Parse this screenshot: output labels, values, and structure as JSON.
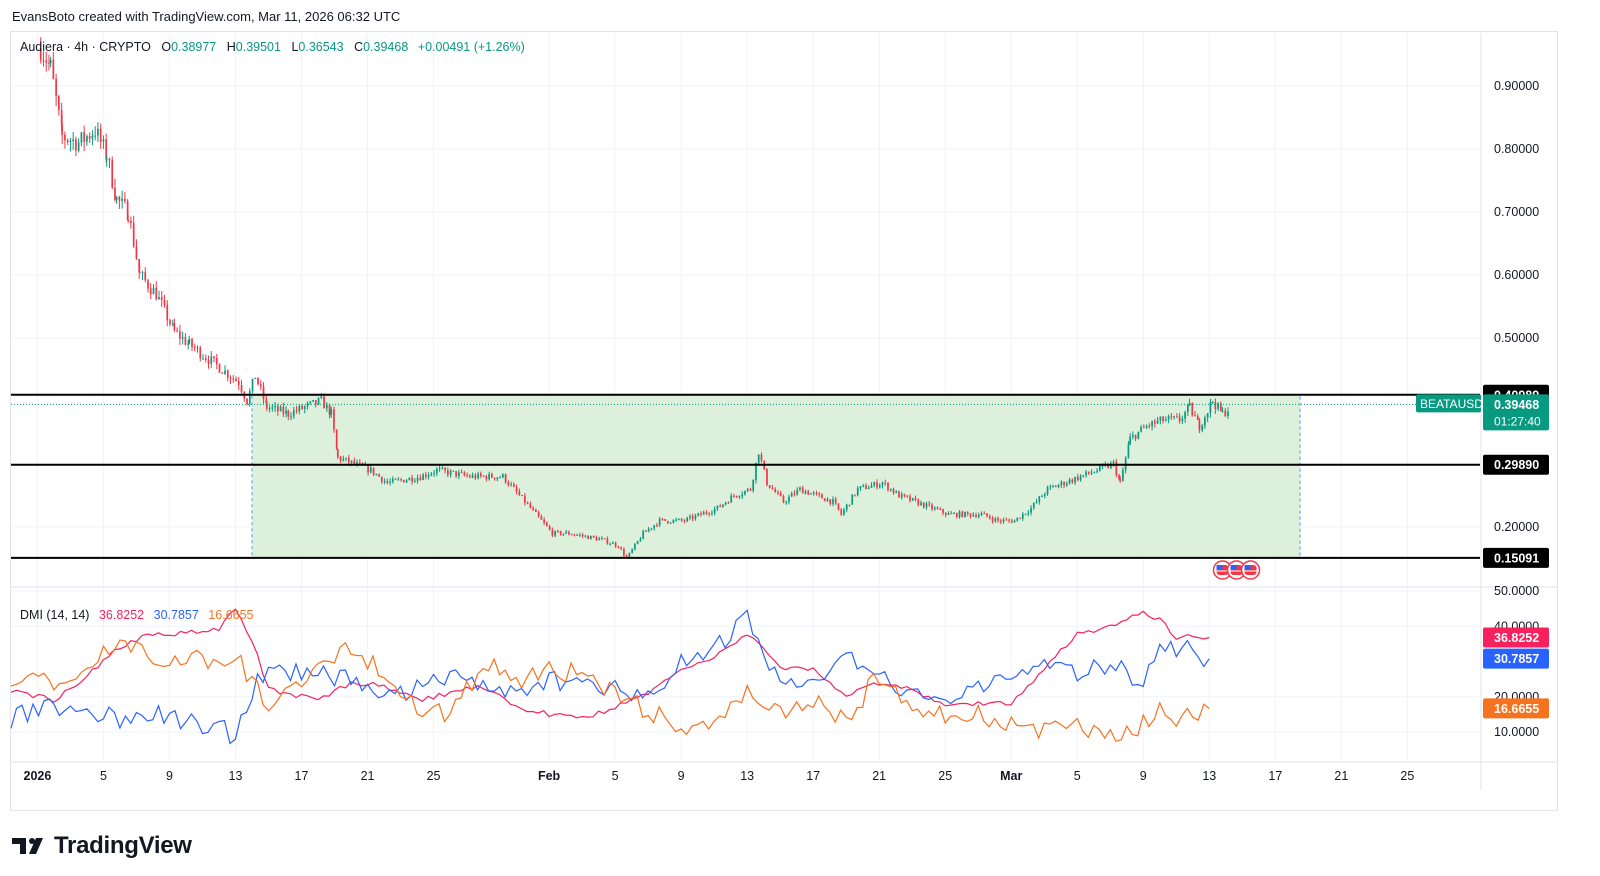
{
  "header": {
    "attribution": "EvansBoto created with TradingView.com, Mar 11, 2026 06:32 UTC"
  },
  "legend": {
    "symbol": "Audiera · 4h · CRYPTO",
    "o_label": "O",
    "o": "0.38977",
    "h_label": "H",
    "h": "0.39501",
    "l_label": "L",
    "l": "0.36543",
    "c_label": "C",
    "c": "0.39468",
    "change": "+0.00491 (+1.26%)"
  },
  "colors": {
    "up": "#089981",
    "down": "#f23645",
    "box_fill": "#dcf0dc",
    "box_border": "#5b8ef0",
    "plus_di": "#2962ff",
    "minus_di": "#f7215e",
    "adx": "#f7721e",
    "level_line": "#000000"
  },
  "price_axis": {
    "ticks": [
      "0.90000",
      "0.80000",
      "0.70000",
      "0.60000",
      "0.50000",
      "0.20000"
    ],
    "tick_values": [
      0.9,
      0.8,
      0.7,
      0.6,
      0.5,
      0.2
    ]
  },
  "levels": [
    {
      "label": "0.40989",
      "value": 0.40989
    },
    {
      "label": "0.29890",
      "value": 0.2989
    },
    {
      "label": "0.15091",
      "value": 0.15091
    }
  ],
  "current_price": {
    "symbol": "BEATAUSD",
    "value": "0.39468",
    "countdown": "01:27:40"
  },
  "x_axis": {
    "labels": [
      "2026",
      "5",
      "9",
      "13",
      "17",
      "21",
      "25",
      "Feb",
      "5",
      "9",
      "13",
      "17",
      "21",
      "25",
      "Mar",
      "5",
      "9",
      "13",
      "17",
      "21",
      "25"
    ],
    "days": [
      1,
      5,
      9,
      13,
      17,
      21,
      25,
      32,
      36,
      40,
      44,
      48,
      52,
      56,
      60,
      64,
      68,
      72,
      76,
      80,
      84
    ]
  },
  "dmi": {
    "title": "DMI (14, 14)",
    "minus_di_value": "36.8252",
    "plus_di_value": "30.7857",
    "adx_value": "16.6655",
    "ticks": [
      "50.0000",
      "40.0000",
      "20.0000",
      "10.0000"
    ],
    "tick_values": [
      50,
      40,
      20,
      10
    ]
  },
  "brand": {
    "name": "TradingView"
  },
  "chart_data": [
    {
      "type": "candlestick",
      "title": "Audiera · 4h · CRYPTO",
      "interval": "4h",
      "x_unit": "day (Jan 1, 2026 = 1)",
      "ylim": [
        0.13,
        0.98
      ],
      "x_range": [
        -0.6,
        88.4
      ],
      "range_box": {
        "x_start": 14,
        "x_end": 77.5,
        "y_top": 0.40989,
        "y_bottom": 0.15091
      },
      "path": [
        [
          1.2,
          0.96
        ],
        [
          1.8,
          0.93
        ],
        [
          2.5,
          0.82
        ],
        [
          3.5,
          0.81
        ],
        [
          4.5,
          0.83
        ],
        [
          5.2,
          0.79
        ],
        [
          5.8,
          0.72
        ],
        [
          6.5,
          0.7
        ],
        [
          7.2,
          0.6
        ],
        [
          8.2,
          0.57
        ],
        [
          9.3,
          0.51
        ],
        [
          10.2,
          0.49
        ],
        [
          11.2,
          0.47
        ],
        [
          12.2,
          0.45
        ],
        [
          13.2,
          0.43
        ],
        [
          13.7,
          0.4
        ],
        [
          14.2,
          0.44
        ],
        [
          14.9,
          0.39
        ],
        [
          16.2,
          0.38
        ],
        [
          17.2,
          0.39
        ],
        [
          18.2,
          0.4
        ],
        [
          18.8,
          0.38
        ],
        [
          19.2,
          0.31
        ],
        [
          21.2,
          0.29
        ],
        [
          22.2,
          0.27
        ],
        [
          24.2,
          0.28
        ],
        [
          25.2,
          0.29
        ],
        [
          27.2,
          0.28
        ],
        [
          29.2,
          0.28
        ],
        [
          30.2,
          0.25
        ],
        [
          31.2,
          0.22
        ],
        [
          32.2,
          0.19
        ],
        [
          33.2,
          0.19
        ],
        [
          35.2,
          0.18
        ],
        [
          36.2,
          0.17
        ],
        [
          36.7,
          0.15
        ],
        [
          37.7,
          0.19
        ],
        [
          38.7,
          0.21
        ],
        [
          40.2,
          0.21
        ],
        [
          42.2,
          0.23
        ],
        [
          43.2,
          0.25
        ],
        [
          44.2,
          0.26
        ],
        [
          44.7,
          0.32
        ],
        [
          45.2,
          0.27
        ],
        [
          46.2,
          0.24
        ],
        [
          47.2,
          0.26
        ],
        [
          49.2,
          0.24
        ],
        [
          49.7,
          0.22
        ],
        [
          50.7,
          0.26
        ],
        [
          52.2,
          0.27
        ],
        [
          53.2,
          0.25
        ],
        [
          55.2,
          0.23
        ],
        [
          56.2,
          0.22
        ],
        [
          58.2,
          0.22
        ],
        [
          59.2,
          0.21
        ],
        [
          60.2,
          0.21
        ],
        [
          61.2,
          0.23
        ],
        [
          62.2,
          0.26
        ],
        [
          64.2,
          0.28
        ],
        [
          65.2,
          0.29
        ],
        [
          66.2,
          0.3
        ],
        [
          66.6,
          0.27
        ],
        [
          67.2,
          0.34
        ],
        [
          68.2,
          0.36
        ],
        [
          69.2,
          0.37
        ],
        [
          70.2,
          0.37
        ],
        [
          70.8,
          0.39
        ],
        [
          71.4,
          0.36
        ],
        [
          72.2,
          0.4
        ],
        [
          72.8,
          0.38
        ],
        [
          73.3,
          0.39
        ]
      ]
    },
    {
      "type": "line",
      "title": "DMI (14, 14)",
      "ylim": [
        0,
        55
      ],
      "series": [
        {
          "name": "-DI",
          "values": [
            [
              -0.6,
              22
            ],
            [
              2,
              19
            ],
            [
              4,
              26
            ],
            [
              6,
              34
            ],
            [
              8,
              38
            ],
            [
              10,
              38
            ],
            [
              12,
              39
            ],
            [
              13,
              45
            ],
            [
              14,
              36
            ],
            [
              15,
              22
            ],
            [
              16,
              21
            ],
            [
              18,
              19
            ],
            [
              20,
              24
            ],
            [
              22,
              23
            ],
            [
              24,
              19
            ],
            [
              26,
              21
            ],
            [
              28,
              23
            ],
            [
              30,
              17
            ],
            [
              32,
              15
            ],
            [
              34,
              14
            ],
            [
              36,
              17
            ],
            [
              38,
              21
            ],
            [
              40,
              28
            ],
            [
              42,
              31
            ],
            [
              44,
              38
            ],
            [
              45,
              34
            ],
            [
              46,
              28
            ],
            [
              48,
              28
            ],
            [
              50,
              20
            ],
            [
              52,
              24
            ],
            [
              54,
              22
            ],
            [
              56,
              18
            ],
            [
              58,
              18
            ],
            [
              60,
              18
            ],
            [
              62,
              28
            ],
            [
              64,
              38
            ],
            [
              66,
              40
            ],
            [
              68,
              44
            ],
            [
              69,
              42
            ],
            [
              70,
              37
            ],
            [
              71,
              37
            ],
            [
              72,
              36.8
            ]
          ]
        },
        {
          "name": "+DI",
          "values": [
            [
              -0.6,
              14
            ],
            [
              2,
              17
            ],
            [
              4,
              15
            ],
            [
              6,
              14
            ],
            [
              8,
              16
            ],
            [
              10,
              13
            ],
            [
              12,
              11
            ],
            [
              13,
              9
            ],
            [
              14,
              22
            ],
            [
              15,
              28
            ],
            [
              16,
              26
            ],
            [
              18,
              28
            ],
            [
              20,
              24
            ],
            [
              22,
              20
            ],
            [
              24,
              22
            ],
            [
              26,
              26
            ],
            [
              28,
              24
            ],
            [
              30,
              20
            ],
            [
              32,
              24
            ],
            [
              34,
              26
            ],
            [
              36,
              22
            ],
            [
              38,
              20
            ],
            [
              40,
              30
            ],
            [
              42,
              34
            ],
            [
              44,
              42
            ],
            [
              45,
              30
            ],
            [
              46,
              26
            ],
            [
              48,
              22
            ],
            [
              50,
              32
            ],
            [
              52,
              26
            ],
            [
              54,
              20
            ],
            [
              56,
              18
            ],
            [
              58,
              22
            ],
            [
              60,
              28
            ],
            [
              62,
              30
            ],
            [
              64,
              26
            ],
            [
              66,
              30
            ],
            [
              68,
              24
            ],
            [
              69,
              36
            ],
            [
              70,
              34
            ],
            [
              71,
              33
            ],
            [
              72,
              30.8
            ]
          ]
        },
        {
          "name": "ADX",
          "values": [
            [
              -0.6,
              26
            ],
            [
              2,
              24
            ],
            [
              4,
              30
            ],
            [
              6,
              34
            ],
            [
              8,
              32
            ],
            [
              10,
              30
            ],
            [
              12,
              31
            ],
            [
              13,
              32
            ],
            [
              14,
              24
            ],
            [
              15,
              18
            ],
            [
              16,
              20
            ],
            [
              18,
              28
            ],
            [
              20,
              34
            ],
            [
              22,
              26
            ],
            [
              24,
              18
            ],
            [
              26,
              14
            ],
            [
              28,
              30
            ],
            [
              30,
              24
            ],
            [
              32,
              28
            ],
            [
              34,
              26
            ],
            [
              36,
              22
            ],
            [
              38,
              16
            ],
            [
              40,
              12
            ],
            [
              42,
              11
            ],
            [
              44,
              22
            ],
            [
              45,
              18
            ],
            [
              46,
              16
            ],
            [
              48,
              18
            ],
            [
              50,
              14
            ],
            [
              52,
              26
            ],
            [
              54,
              18
            ],
            [
              56,
              14
            ],
            [
              58,
              15
            ],
            [
              60,
              13
            ],
            [
              62,
              10
            ],
            [
              64,
              12
            ],
            [
              66,
              8
            ],
            [
              68,
              12
            ],
            [
              69,
              16
            ],
            [
              70,
              14
            ],
            [
              71,
              14
            ],
            [
              72,
              16.7
            ]
          ]
        }
      ]
    }
  ]
}
